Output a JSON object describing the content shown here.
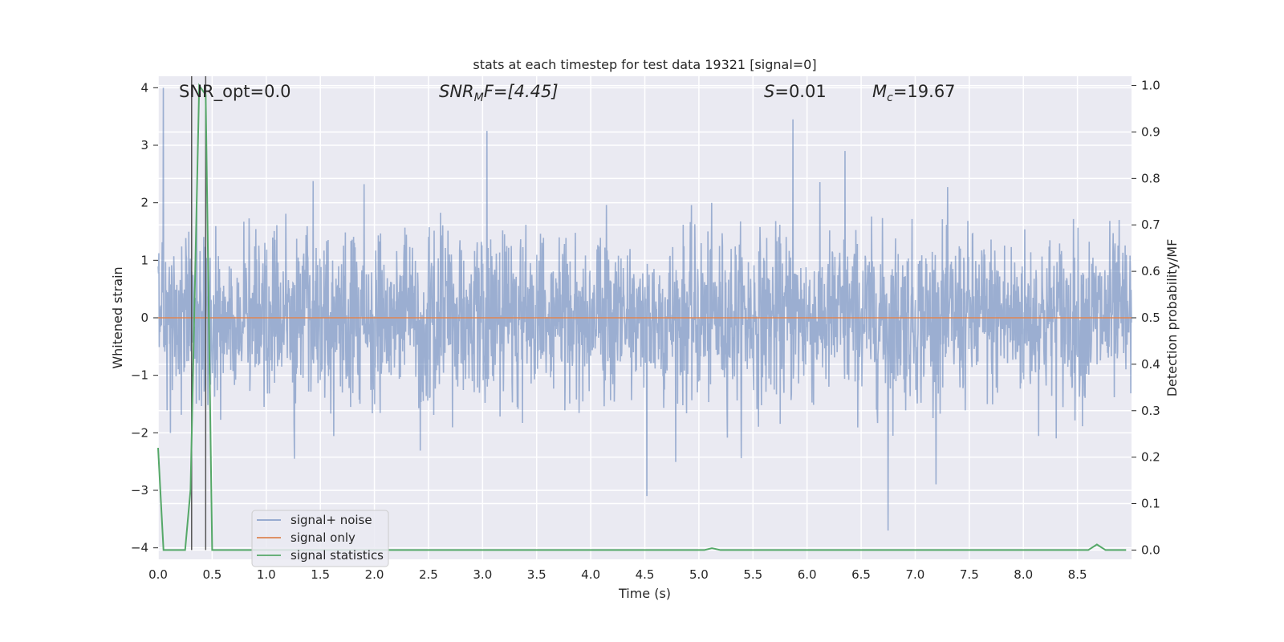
{
  "chart_data": {
    "type": "line",
    "title": "stats at each timestep for test data 19321 [signal=0]",
    "xlabel": "Time (s)",
    "ylabel": "Whitened strain",
    "y2label": "Detection probability/MF",
    "xlim": [
      0.0,
      9.0
    ],
    "ylim": [
      -4.2,
      4.2
    ],
    "y2lim": [
      -0.02,
      1.02
    ],
    "xticks": [
      "0.0",
      "0.5",
      "1.0",
      "1.5",
      "2.0",
      "2.5",
      "3.0",
      "3.5",
      "4.0",
      "4.5",
      "5.0",
      "5.5",
      "6.0",
      "6.5",
      "7.0",
      "7.5",
      "8.0",
      "8.5"
    ],
    "yticks": [
      "4",
      "3",
      "2",
      "1",
      "0",
      "−1",
      "−2",
      "−3",
      "−4"
    ],
    "y2ticks": [
      "1.0",
      "0.9",
      "0.8",
      "0.7",
      "0.6",
      "0.5",
      "0.4",
      "0.3",
      "0.2",
      "0.1",
      "0.0"
    ],
    "annotations": {
      "snr_opt": "SNR_opt=0.0",
      "snr_mf_name": "SNR",
      "snr_mf_sub": "M",
      "snr_mf_tail": "F=[4.45]",
      "s_name": "S",
      "s_tail": "=0.01",
      "mc_name": "M",
      "mc_sub": "c",
      "mc_tail": "=19.67"
    },
    "series": [
      {
        "name": "signal+ noise",
        "color": "#4c72b0",
        "axis": "left",
        "description": "whitened noise, approx. Gaussian, std ~0.8, peaks up to ~4.0 and down to ~-3.7",
        "x_range": [
          0.0,
          9.0
        ],
        "notable_points": [
          [
            0.05,
            4.0
          ],
          [
            3.04,
            3.25
          ],
          [
            4.52,
            -3.1
          ],
          [
            5.87,
            3.45
          ],
          [
            6.75,
            -3.7
          ],
          [
            6.35,
            2.9
          ]
        ]
      },
      {
        "name": "signal only",
        "color": "#dd8452",
        "axis": "left",
        "x": [
          0.0,
          9.0
        ],
        "values": [
          0.0,
          0.0
        ]
      },
      {
        "name": "signal statistics",
        "color": "#55a868",
        "axis": "right",
        "x": [
          0.0,
          0.05,
          0.25,
          0.3,
          0.38,
          0.44,
          0.5,
          5.05,
          5.12,
          5.2,
          8.6,
          8.68,
          8.76,
          8.95
        ],
        "values": [
          0.22,
          0.0,
          0.0,
          0.13,
          1.0,
          0.98,
          0.0,
          0.0,
          0.004,
          0.0,
          0.0,
          0.012,
          0.0,
          0.0
        ]
      }
    ],
    "vlines": [
      {
        "x": 0.31,
        "color": "#555555"
      },
      {
        "x": 0.44,
        "color": "#555555"
      }
    ],
    "legend": {
      "location": "lower-left",
      "entries": [
        {
          "label": "signal+ noise",
          "color": "#4c72b0"
        },
        {
          "label": "signal only",
          "color": "#dd8452"
        },
        {
          "label": "signal statistics",
          "color": "#55a868"
        }
      ]
    },
    "grid": true
  },
  "style": {
    "plot_background": "#eaeaf2",
    "grid_color": "#ffffff",
    "text_color": "#262626"
  }
}
